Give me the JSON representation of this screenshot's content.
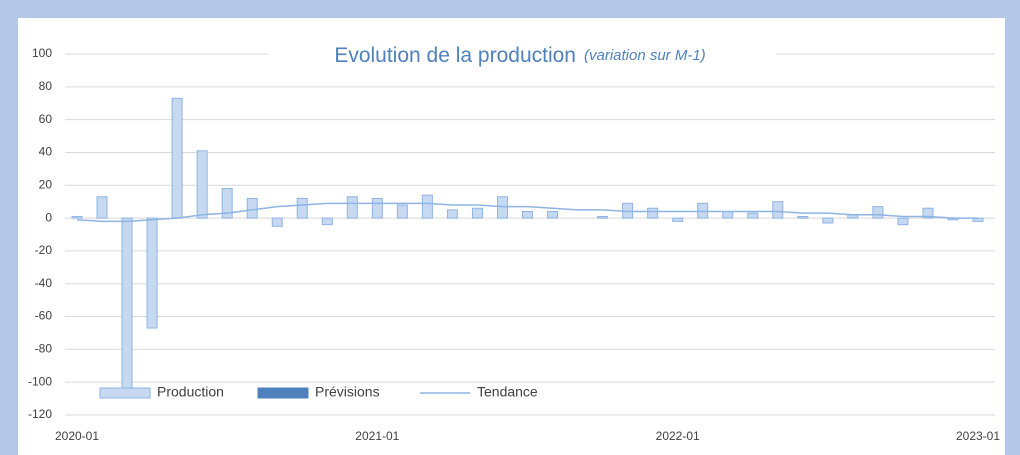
{
  "chart_data": {
    "type": "bar",
    "title": "Evolution de la production",
    "subtitle": "(variation sur M-1)",
    "categories": [
      "2020-01",
      null,
      null,
      null,
      null,
      null,
      null,
      null,
      null,
      null,
      null,
      null,
      "2021-01",
      null,
      null,
      null,
      null,
      null,
      null,
      null,
      null,
      null,
      null,
      null,
      "2022-01",
      null,
      null,
      null,
      null,
      null,
      null,
      null,
      null,
      null,
      null,
      null,
      "2023-01"
    ],
    "series": [
      {
        "name": "Production",
        "type": "bar",
        "color": "#c6d9f1",
        "values": [
          1,
          13,
          -104,
          -67,
          73,
          41,
          18,
          12,
          -5,
          12,
          -4,
          13,
          12,
          8,
          14,
          5,
          6,
          13,
          4,
          4,
          0,
          1,
          9,
          6,
          -2,
          9,
          4,
          3,
          10,
          1,
          -3,
          2,
          7,
          -4,
          6,
          -1,
          -2
        ]
      },
      {
        "name": "Prévisions",
        "type": "bar",
        "color": "#4f81bd",
        "values": [
          null,
          null,
          null,
          null,
          null,
          null,
          null,
          null,
          null,
          null,
          null,
          null,
          null,
          null,
          null,
          null,
          null,
          null,
          null,
          null,
          null,
          null,
          null,
          null,
          null,
          null,
          null,
          null,
          null,
          null,
          null,
          null,
          null,
          null,
          null,
          null,
          null
        ]
      },
      {
        "name": "Tendance",
        "type": "line",
        "color": "#8eb4e3",
        "values": [
          -1,
          -2,
          -2,
          -1,
          0,
          2,
          3,
          5,
          7,
          8,
          9,
          9,
          9,
          9,
          9,
          8,
          8,
          7,
          7,
          6,
          5,
          5,
          4,
          4,
          4,
          4,
          4,
          4,
          4,
          3,
          3,
          2,
          2,
          1,
          1,
          0,
          0
        ]
      }
    ],
    "ylim": [
      -120,
      100
    ],
    "yticks": [
      -120,
      -100,
      -80,
      -60,
      -40,
      -20,
      0,
      20,
      40,
      60,
      80,
      100
    ],
    "grid": true,
    "legend": "bottom"
  }
}
